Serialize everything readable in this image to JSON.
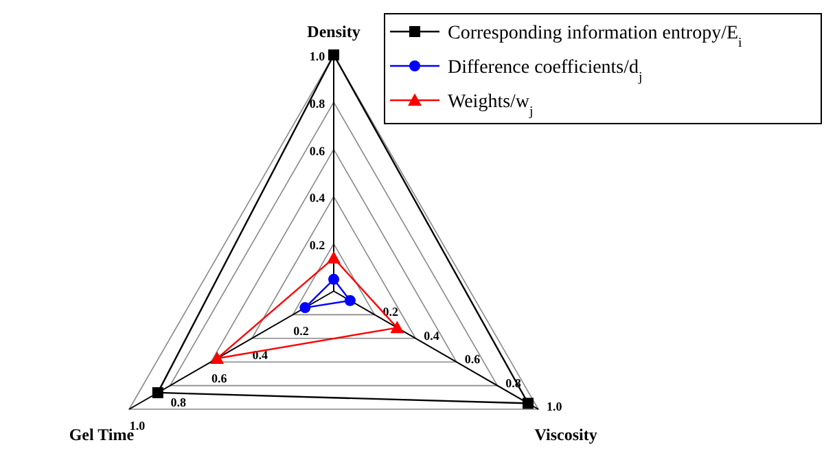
{
  "chart_data": {
    "type": "radar",
    "categories": [
      "Density",
      "Viscosity",
      "Gel Time"
    ],
    "ylim": [
      0,
      1
    ],
    "yticks": [
      {
        "value": 0.2,
        "label": "0.2"
      },
      {
        "value": 0.4,
        "label": "0.4"
      },
      {
        "value": 0.6,
        "label": "0.6"
      },
      {
        "value": 0.8,
        "label": "0.8"
      },
      {
        "value": 1,
        "label": "1.0"
      }
    ],
    "series": [
      {
        "name": "Corresponding information entropy/E$_{i}$",
        "color": "#000000",
        "marker": "square",
        "values": [
          1.0,
          0.95,
          0.86
        ]
      },
      {
        "name": "Difference coefficients/d$_{j}$",
        "color": "#0000ff",
        "marker": "circle",
        "values": [
          0.05,
          0.08,
          0.14
        ]
      },
      {
        "name": "Weights/w$_{j}$",
        "color": "#ff0000",
        "marker": "triangle",
        "values": [
          0.14,
          0.31,
          0.57
        ]
      }
    ],
    "legend": "top right",
    "grid": true
  }
}
